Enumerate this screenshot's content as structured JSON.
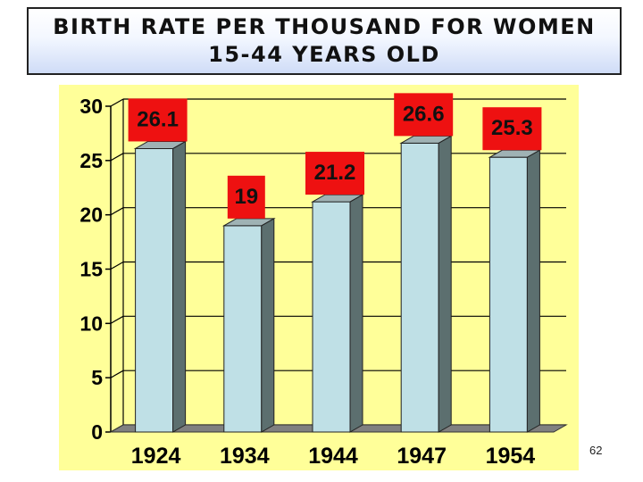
{
  "title": {
    "line1": "BIRTH RATE PER THOUSAND FOR WOMEN",
    "line2": "15-44 YEARS OLD"
  },
  "page_number": "62",
  "colors": {
    "plot_background": "#ffff99",
    "bar_front": "#bfe0e6",
    "bar_side": "#5c6f6f",
    "label_box": "#ee1111",
    "floor": "#808080"
  },
  "chart_data": {
    "type": "bar",
    "title": "BIRTH RATE PER THOUSAND FOR WOMEN 15-44 YEARS OLD",
    "categories": [
      "1924",
      "1934",
      "1944",
      "1947",
      "1954"
    ],
    "values": [
      26.1,
      19,
      21.2,
      26.6,
      25.3
    ],
    "value_labels": [
      "26.1",
      "19",
      "21.2",
      "26.6",
      "25.3"
    ],
    "yticks": [
      "0",
      "5",
      "10",
      "15",
      "20",
      "25",
      "30"
    ],
    "ylim": [
      0,
      30
    ],
    "grid": true,
    "legend": "none"
  }
}
